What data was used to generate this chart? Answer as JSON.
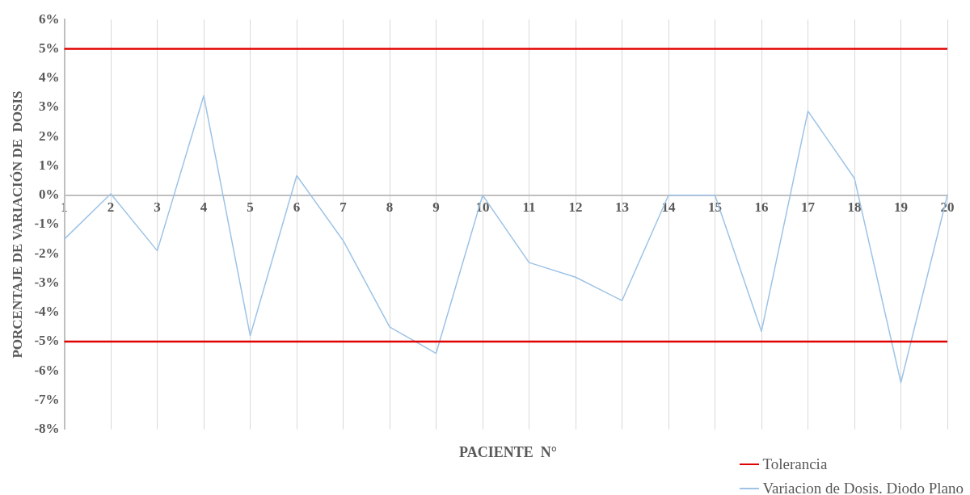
{
  "chart_data": {
    "type": "line",
    "xlabel": "PACIENTE  N°",
    "ylabel": "PORCENTAJE DE VARIACIÓN DE  DOSIS",
    "categories": [
      "1",
      "2",
      "3",
      "4",
      "5",
      "6",
      "7",
      "8",
      "9",
      "10",
      "11",
      "12",
      "13",
      "14",
      "15",
      "16",
      "17",
      "18",
      "19",
      "20"
    ],
    "series": [
      {
        "name": "Variacion de Dosis. Diodo Plano",
        "color": "#9dc3e6",
        "values": [
          -1.5,
          0.05,
          -1.9,
          3.4,
          -4.8,
          0.67,
          -1.55,
          -4.5,
          -5.4,
          0,
          -2.3,
          -2.8,
          -3.6,
          0,
          0,
          -4.65,
          2.87,
          0.58,
          -6.4,
          0
        ]
      }
    ],
    "ref_lines": [
      {
        "axis": "y",
        "value": 5,
        "label": "Tolerancia",
        "color": "#e00000"
      },
      {
        "axis": "y",
        "value": -5,
        "color": "#e00000"
      }
    ],
    "ylim": [
      -8,
      6
    ],
    "yticks": [
      {
        "value": -8,
        "label": "-8%"
      },
      {
        "value": -7,
        "label": "-7%"
      },
      {
        "value": -6,
        "label": "-6%"
      },
      {
        "value": -5,
        "label": "-5%"
      },
      {
        "value": -4,
        "label": "-4%"
      },
      {
        "value": -3,
        "label": "-3%"
      },
      {
        "value": -2,
        "label": "-2%"
      },
      {
        "value": -1,
        "label": "-1%"
      },
      {
        "value": 0,
        "label": "0%"
      },
      {
        "value": 1,
        "label": "1%"
      },
      {
        "value": 2,
        "label": "2%"
      },
      {
        "value": 3,
        "label": "3%"
      },
      {
        "value": 4,
        "label": "4%"
      },
      {
        "value": 5,
        "label": "5%"
      },
      {
        "value": 6,
        "label": "6%"
      }
    ],
    "grid": "x",
    "legend": "bottom right",
    "marker": "none",
    "line_style": "solid"
  }
}
